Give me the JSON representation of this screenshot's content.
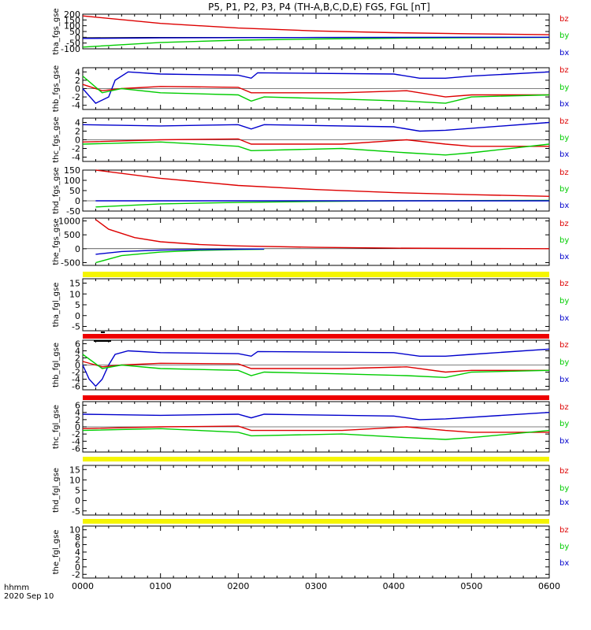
{
  "title": "P5, P1, P2, P3, P4 (TH-A,B,C,D,E) FGS, FGL [nT]",
  "footer": {
    "time_label": "hhmm",
    "date_label": "2020 Sep 10"
  },
  "colors": {
    "bz": "#dd0000",
    "by": "#00cc00",
    "bx": "#0000cc",
    "yellow_bar": "#f5f500",
    "red_bar": "#ee0000"
  },
  "chart_data": {
    "type": "line",
    "xlabel": "hhmm",
    "x_range": [
      0,
      360
    ],
    "x_ticks": [
      "0000",
      "0100",
      "0200",
      "0300",
      "0400",
      "0500",
      "0600"
    ],
    "panels": [
      {
        "ylabel": "tha_fgs_gse",
        "ylim": [
          -100,
          200
        ],
        "ticks": [
          "200",
          "150",
          "100",
          "50",
          "0",
          "-50",
          "-100"
        ],
        "legend": [
          "bz",
          "by",
          "bx"
        ],
        "series": [
          {
            "name": "bz",
            "x": [
              0,
              60,
              120,
              180,
              240,
              300,
              360
            ],
            "y": [
              185,
              120,
              80,
              55,
              40,
              30,
              22
            ]
          },
          {
            "name": "by",
            "x": [
              0,
              60,
              120,
              180,
              240,
              300,
              360
            ],
            "y": [
              -85,
              -45,
              -25,
              -15,
              -8,
              -4,
              -2
            ]
          },
          {
            "name": "bx",
            "x": [
              0,
              60,
              120,
              180,
              240,
              300,
              360
            ],
            "y": [
              -10,
              -5,
              -3,
              -2,
              -1,
              0,
              0
            ]
          }
        ]
      },
      {
        "ylabel": "thb_fgs_gse",
        "ylim": [
          -5,
          5
        ],
        "ticks": [
          "4",
          "2",
          "0",
          "-2",
          "-4"
        ],
        "legend": [
          "bz",
          "by",
          "bx"
        ],
        "series": [
          {
            "name": "bx",
            "x": [
              0,
              10,
              20,
              25,
              35,
              60,
              120,
              130,
              135,
              240,
              260,
              280,
              300,
              360
            ],
            "y": [
              0,
              -3.5,
              -2,
              2,
              4,
              3.5,
              3.2,
              2.5,
              3.8,
              3.5,
              2.5,
              2.5,
              3,
              4
            ]
          },
          {
            "name": "bz",
            "x": [
              0,
              15,
              30,
              60,
              120,
              130,
              200,
              250,
              280,
              300,
              360
            ],
            "y": [
              1,
              -0.5,
              0,
              0.5,
              0.3,
              -1,
              -1,
              -0.5,
              -2,
              -1.5,
              -1.5
            ]
          },
          {
            "name": "by",
            "x": [
              0,
              15,
              30,
              60,
              120,
              130,
              140,
              200,
              250,
              280,
              300,
              360
            ],
            "y": [
              3,
              -1,
              0,
              -1,
              -1.5,
              -3,
              -2,
              -2.5,
              -3,
              -3.5,
              -2,
              -1.5
            ]
          }
        ]
      },
      {
        "ylabel": "thc_fgs_gse",
        "ylim": [
          -5,
          5
        ],
        "ticks": [
          "4",
          "2",
          "0",
          "-2",
          "-4"
        ],
        "legend": [
          "bz",
          "by",
          "bx"
        ],
        "series": [
          {
            "name": "bx",
            "x": [
              0,
              60,
              120,
              130,
              140,
              240,
              260,
              280,
              360
            ],
            "y": [
              3.5,
              3.2,
              3.5,
              2.5,
              3.5,
              3,
              2,
              2.2,
              4
            ]
          },
          {
            "name": "bz",
            "x": [
              0,
              60,
              120,
              130,
              200,
              250,
              280,
              300,
              360
            ],
            "y": [
              -0.5,
              0,
              0.2,
              -1,
              -1,
              0,
              -1,
              -1.5,
              -1.5
            ]
          },
          {
            "name": "by",
            "x": [
              0,
              60,
              120,
              130,
              200,
              250,
              280,
              300,
              360
            ],
            "y": [
              -1,
              -0.5,
              -1.5,
              -2.5,
              -2,
              -3,
              -3.5,
              -3,
              -1
            ]
          }
        ]
      },
      {
        "ylabel": "thd_fgs_gse",
        "ylim": [
          -50,
          150
        ],
        "ticks": [
          "150",
          "100",
          "50",
          "0",
          "-50"
        ],
        "legend": [
          "bz",
          "by",
          "bx"
        ],
        "series": [
          {
            "name": "bz",
            "x": [
              10,
              60,
              120,
              180,
              240,
              300,
              360
            ],
            "y": [
              150,
              110,
              75,
              55,
              40,
              30,
              22
            ]
          },
          {
            "name": "by",
            "x": [
              10,
              60,
              120,
              180,
              240,
              300,
              360
            ],
            "y": [
              -30,
              -15,
              -8,
              -3,
              0,
              1,
              2
            ]
          },
          {
            "name": "bx",
            "x": [
              10,
              60,
              120,
              180,
              240,
              300,
              360
            ],
            "y": [
              0,
              0,
              0,
              0,
              0,
              0,
              0
            ]
          }
        ]
      },
      {
        "ylabel": "the_fgs_gse",
        "ylim": [
          -600,
          1100
        ],
        "ticks": [
          "1000",
          "500",
          "0",
          "-500"
        ],
        "legend": [
          "bz",
          "by",
          "bx"
        ],
        "series": [
          {
            "name": "bz",
            "x": [
              10,
              20,
              40,
              60,
              90,
              120,
              180,
              240,
              300,
              360
            ],
            "y": [
              1050,
              700,
              400,
              250,
              150,
              100,
              50,
              20,
              10,
              0
            ]
          },
          {
            "name": "by",
            "x": [
              10,
              30,
              60,
              90,
              120,
              140
            ],
            "y": [
              -500,
              -250,
              -120,
              -60,
              -30,
              -20
            ]
          },
          {
            "name": "bx",
            "x": [
              10,
              30,
              60,
              90,
              120,
              140
            ],
            "y": [
              -200,
              -100,
              -50,
              -30,
              -15,
              -10
            ]
          }
        ]
      },
      {
        "ylabel": "tha_fgl_gse",
        "ylim": [
          -7,
          17
        ],
        "ticks": [
          "15",
          "10",
          "5",
          "0",
          "-5"
        ],
        "legend": [
          "bz",
          "by",
          "bx"
        ],
        "series": []
      },
      {
        "ylabel": "thb_fgl_gse",
        "ylim": [
          -7,
          7
        ],
        "ticks": [
          "6",
          "4",
          "2",
          "0",
          "-2",
          "-4",
          "-6"
        ],
        "legend": [
          "bz",
          "by",
          "bx"
        ],
        "series": [
          {
            "name": "bx",
            "x": [
              0,
              5,
              10,
              15,
              20,
              25,
              35,
              60,
              120,
              130,
              135,
              240,
              260,
              280,
              300,
              360
            ],
            "y": [
              0,
              -4,
              -6,
              -4,
              0,
              3,
              4,
              3.5,
              3.2,
              2.5,
              3.8,
              3.5,
              2.5,
              2.5,
              3,
              4.5
            ]
          },
          {
            "name": "bz",
            "x": [
              0,
              15,
              30,
              60,
              120,
              130,
              200,
              250,
              280,
              300,
              360
            ],
            "y": [
              1,
              -0.5,
              0,
              0.5,
              0.3,
              -1,
              -1,
              -0.5,
              -2,
              -1.5,
              -1.5
            ]
          },
          {
            "name": "by",
            "x": [
              0,
              15,
              30,
              60,
              120,
              130,
              140,
              200,
              250,
              280,
              300,
              360
            ],
            "y": [
              3,
              -1,
              0,
              -1,
              -1.5,
              -3,
              -2,
              -2.5,
              -3,
              -3.5,
              -2,
              -1.5
            ]
          }
        ]
      },
      {
        "ylabel": "thc_fgl_gse",
        "ylim": [
          -7,
          7
        ],
        "ticks": [
          "6",
          "4",
          "2",
          "0",
          "-2",
          "-4",
          "-6"
        ],
        "legend": [
          "bz",
          "by",
          "bx"
        ],
        "series": [
          {
            "name": "bx",
            "x": [
              0,
              60,
              120,
              130,
              140,
              240,
              260,
              280,
              360
            ],
            "y": [
              3.5,
              3.2,
              3.5,
              2.5,
              3.5,
              3,
              2,
              2.2,
              4
            ]
          },
          {
            "name": "bz",
            "x": [
              0,
              60,
              120,
              130,
              200,
              250,
              280,
              300,
              360
            ],
            "y": [
              -0.5,
              0,
              0.2,
              -1,
              -1,
              0,
              -1,
              -1.5,
              -1.5
            ]
          },
          {
            "name": "by",
            "x": [
              0,
              60,
              120,
              130,
              200,
              250,
              280,
              300,
              360
            ],
            "y": [
              -1,
              -0.5,
              -1.5,
              -2.5,
              -2,
              -3,
              -3.5,
              -3,
              -1
            ]
          }
        ]
      },
      {
        "ylabel": "thd_fgl_gse",
        "ylim": [
          -7,
          17
        ],
        "ticks": [
          "15",
          "10",
          "5",
          "0",
          "-5"
        ],
        "legend": [
          "bz",
          "by",
          "bx"
        ],
        "series": []
      },
      {
        "ylabel": "the_fgl_gse",
        "ylim": [
          -3,
          11
        ],
        "ticks": [
          "10",
          "8",
          "6",
          "4",
          "2",
          "0",
          "-2"
        ],
        "legend": [
          "bz",
          "by",
          "bx"
        ],
        "series": []
      }
    ],
    "grid": false,
    "legend_position": "right"
  }
}
